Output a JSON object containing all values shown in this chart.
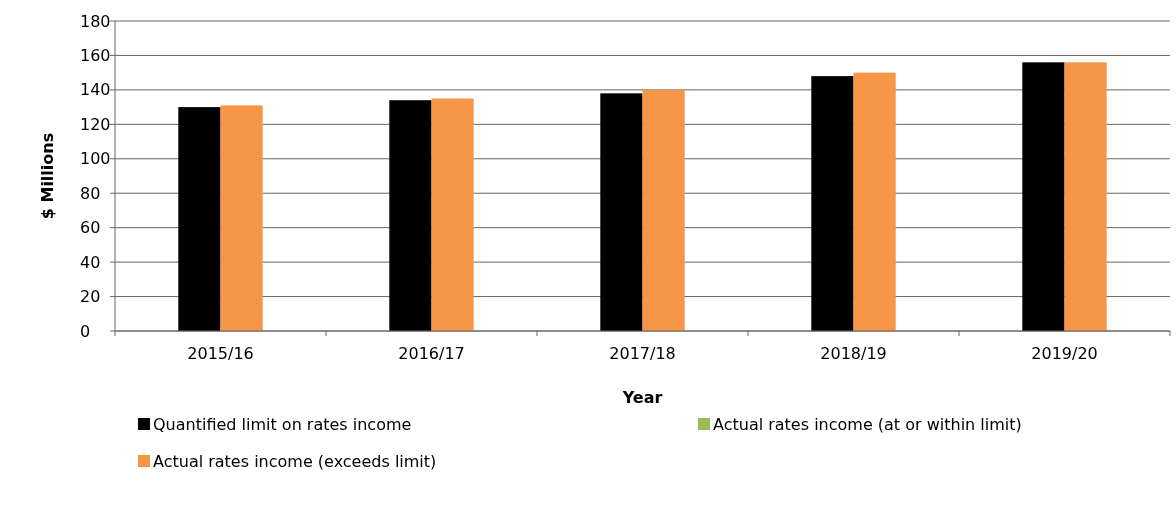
{
  "chart_data": {
    "type": "bar",
    "xlabel": "Year",
    "ylabel": "$ Millions",
    "categories": [
      "2015/16",
      "2016/17",
      "2017/18",
      "2018/19",
      "2019/20"
    ],
    "series": [
      {
        "name": "Quantified limit on rates income",
        "color": "#000000",
        "values": [
          130,
          134,
          138,
          148,
          156
        ]
      },
      {
        "name": "Actual rates income (at or within limit)",
        "color": "#9bbb59",
        "values": [
          null,
          null,
          null,
          null,
          null
        ]
      },
      {
        "name": "Actual rates income (exceeds limit)",
        "color": "#f79646",
        "values": [
          131,
          135,
          140,
          150,
          156
        ]
      }
    ],
    "ylim": [
      0,
      180
    ],
    "yticks": [
      0,
      20,
      40,
      60,
      80,
      100,
      120,
      140,
      160,
      180
    ],
    "grid": "y",
    "legend": "bottom"
  }
}
